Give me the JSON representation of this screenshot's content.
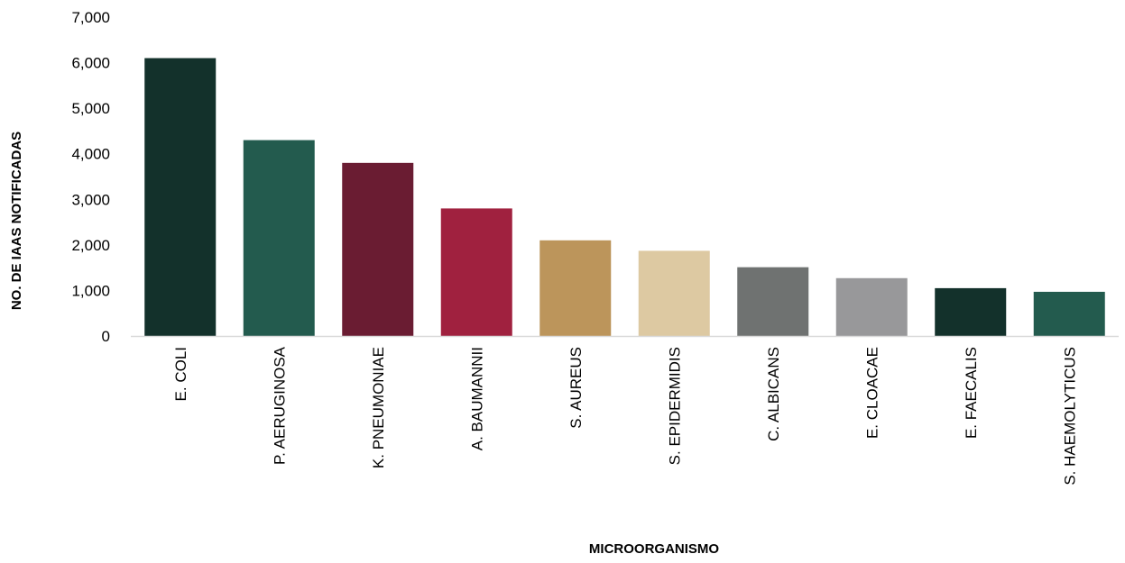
{
  "chart_data": {
    "type": "bar",
    "title": "",
    "xlabel": "MICROORGANISMO",
    "ylabel": "NO. DE IAAS NOTIFICADAS",
    "ylim": [
      0,
      7000
    ],
    "yticks": [
      "0",
      "1,000",
      "2,000",
      "3,000",
      "4,000",
      "5,000",
      "6,000",
      "7,000"
    ],
    "ytick_values": [
      0,
      1000,
      2000,
      3000,
      4000,
      5000,
      6000,
      7000
    ],
    "grid": false,
    "legend": "none",
    "categories": [
      "E. COLI",
      "P. AERUGINOSA",
      "K. PNEUMONIAE",
      "A. BAUMANNII",
      "S. AUREUS",
      "S. EPIDERMIDIS",
      "C. ALBICANS",
      "E. CLOACAE",
      "E. FAECALIS",
      "S. HAEMOLYTICUS"
    ],
    "values": [
      6100,
      4300,
      3800,
      2800,
      2100,
      1870,
      1510,
      1270,
      1050,
      970
    ],
    "colors": [
      "#13312b",
      "#235b4e",
      "#6a1c32",
      "#a0213f",
      "#bc955b",
      "#ddc9a2",
      "#6f7271",
      "#98989a",
      "#13312b",
      "#235b4e"
    ],
    "axis_color": "#d9d9d9"
  }
}
